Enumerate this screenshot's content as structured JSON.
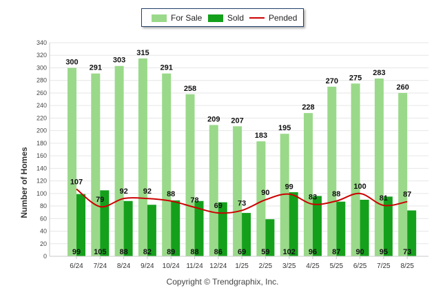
{
  "legend": {
    "for_sale": "For Sale",
    "sold": "Sold",
    "pended": "Pended"
  },
  "copyright": "Copyright © Trendgraphix, Inc.",
  "colors": {
    "for_sale": "#9ad98a",
    "sold": "#15a01c",
    "pended": "#cc0000"
  },
  "chart_data": {
    "type": "bar",
    "ylabel": "Number of Homes",
    "xlabel": "",
    "ylim": [
      0,
      340
    ],
    "yticks": [
      0,
      20,
      40,
      60,
      80,
      100,
      120,
      140,
      160,
      180,
      200,
      220,
      240,
      260,
      280,
      300,
      320,
      340
    ],
    "grid": true,
    "legend_position": "top-center",
    "categories": [
      "6/24",
      "7/24",
      "8/24",
      "9/24",
      "10/24",
      "11/24",
      "12/24",
      "1/25",
      "2/25",
      "3/25",
      "4/25",
      "5/25",
      "6/25",
      "7/25",
      "8/25"
    ],
    "series": [
      {
        "name": "For Sale",
        "type": "bar",
        "values": [
          300,
          291,
          303,
          315,
          291,
          258,
          209,
          207,
          183,
          195,
          228,
          270,
          275,
          283,
          260
        ]
      },
      {
        "name": "Sold",
        "type": "bar",
        "values": [
          99,
          105,
          88,
          82,
          89,
          88,
          86,
          69,
          59,
          102,
          96,
          87,
          90,
          95,
          73
        ]
      },
      {
        "name": "Pended",
        "type": "line",
        "values": [
          107,
          79,
          92,
          92,
          88,
          78,
          69,
          73,
          90,
          99,
          83,
          88,
          100,
          81,
          87
        ]
      }
    ]
  }
}
